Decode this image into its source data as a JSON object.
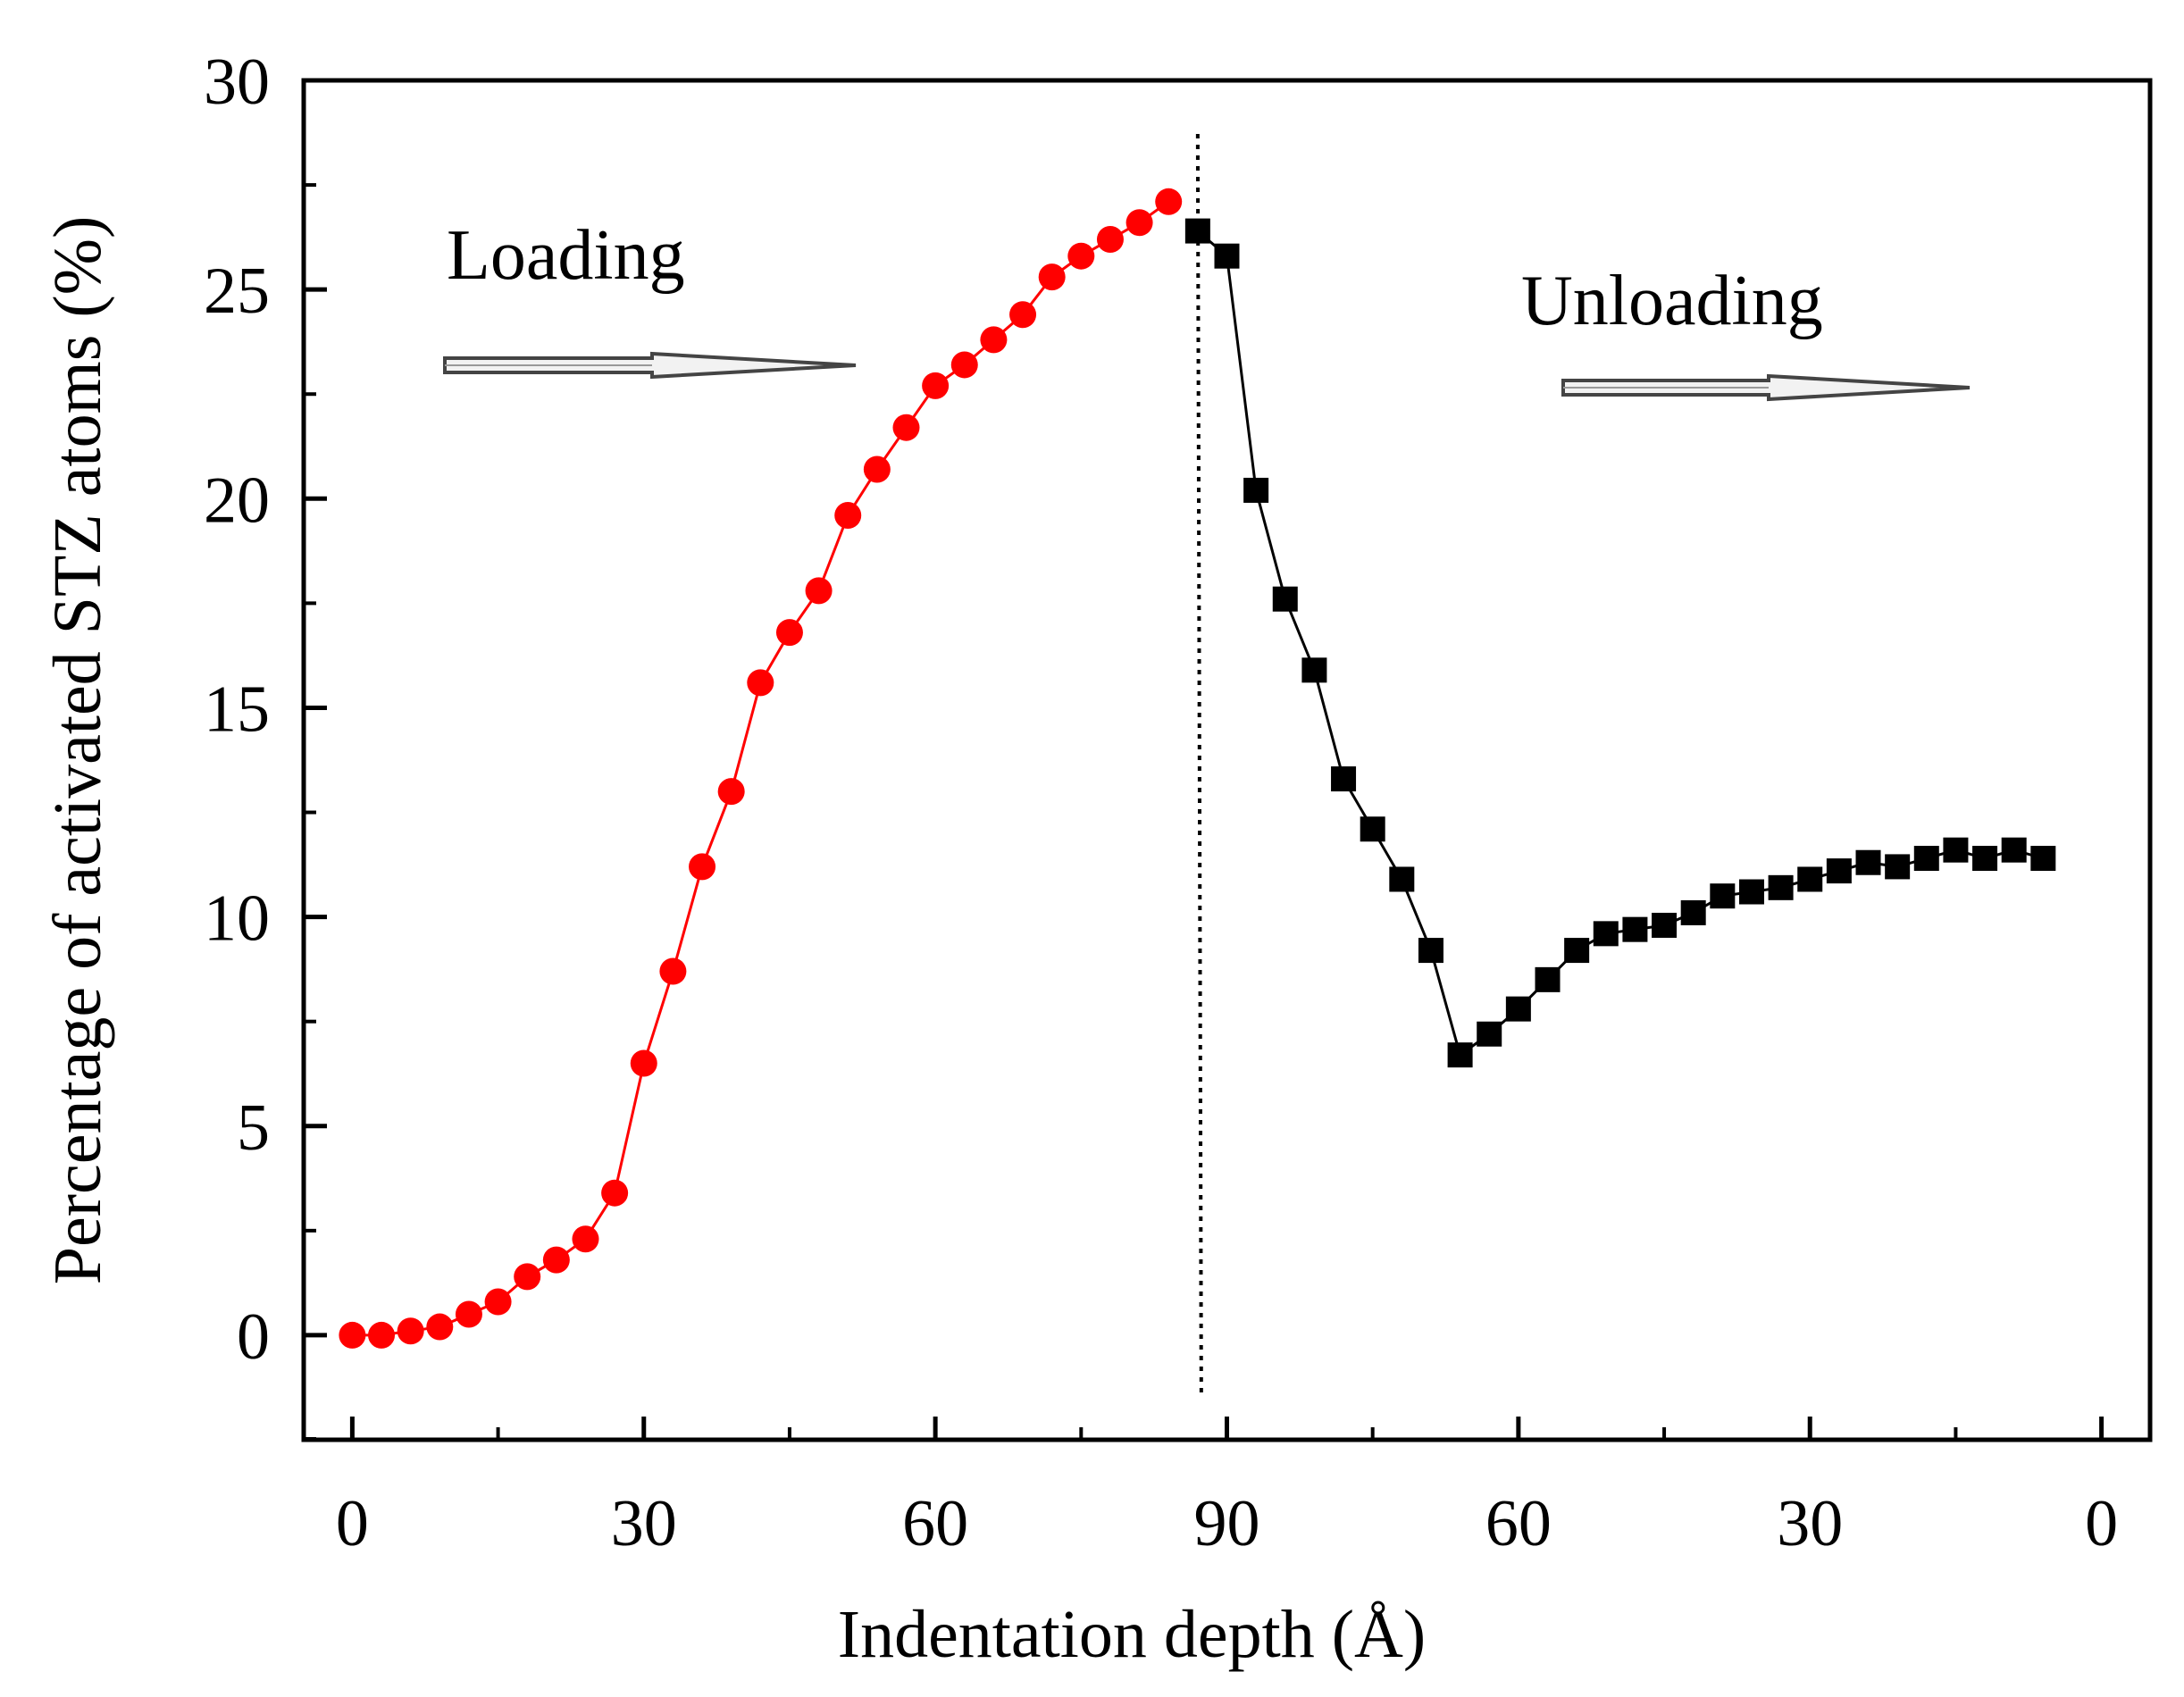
{
  "chart_data": {
    "type": "scatter",
    "title": "",
    "xlabel": "Indentation depth (Å)",
    "ylabel": "Percentage of activated STZ atoms (%)",
    "ylim": [
      -2.5,
      30
    ],
    "yticks": [
      "0",
      "5",
      "10",
      "15",
      "20",
      "25",
      "30"
    ],
    "xticks": [
      "0",
      "30",
      "60",
      "90",
      "60",
      "30",
      "0"
    ],
    "xlim": [
      -5,
      185
    ],
    "x_note": "Continuous sequence axis: 0-90 is loading depth, 90-180 is unloading (depth = 180 - x).",
    "peak_marker_x": 87,
    "annotations": [
      "Loading",
      "Unloading"
    ],
    "series": [
      {
        "name": "Loading",
        "marker": "circle",
        "color": "#ff0000",
        "x": [
          0,
          3,
          6,
          9,
          12,
          15,
          18,
          21,
          24,
          27,
          30,
          33,
          36,
          39,
          42,
          45,
          48,
          51,
          54,
          57,
          60,
          63,
          66,
          69,
          72,
          75,
          78,
          81,
          84
        ],
        "y": [
          0.0,
          0.0,
          0.1,
          0.2,
          0.5,
          0.8,
          1.4,
          1.8,
          2.3,
          3.4,
          6.5,
          8.7,
          11.2,
          13.0,
          15.6,
          16.8,
          17.8,
          19.6,
          20.7,
          21.7,
          22.7,
          23.2,
          23.8,
          24.4,
          25.3,
          25.8,
          26.2,
          26.6,
          27.1
        ]
      },
      {
        "name": "Unloading",
        "marker": "square",
        "color": "#000000",
        "x": [
          87,
          90,
          93,
          96,
          99,
          102,
          105,
          108,
          111,
          114,
          117,
          120,
          123,
          126,
          129,
          132,
          135,
          138,
          141,
          144,
          147,
          150,
          153,
          156,
          159,
          162,
          165,
          168,
          171,
          174
        ],
        "y": [
          26.4,
          25.8,
          20.2,
          17.6,
          15.9,
          13.3,
          12.1,
          10.9,
          9.2,
          6.7,
          7.2,
          7.8,
          8.5,
          9.2,
          9.6,
          9.7,
          9.8,
          10.1,
          10.5,
          10.6,
          10.7,
          10.9,
          11.1,
          11.3,
          11.2,
          11.4,
          11.6,
          11.4,
          11.6,
          11.4
        ]
      }
    ]
  }
}
